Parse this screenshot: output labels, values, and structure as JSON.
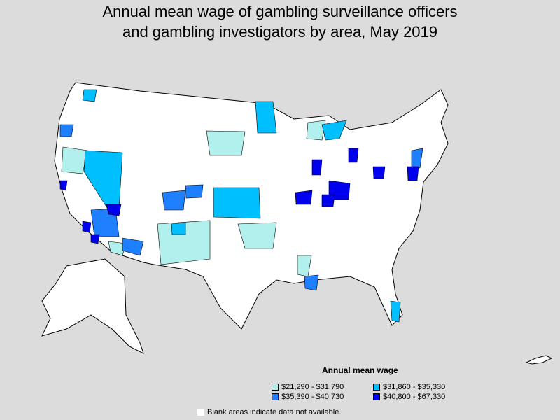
{
  "title_line1": "Annual mean wage of gambling surveillance officers",
  "title_line2": "and gambling investigators by area, May 2019",
  "legend": {
    "title": "Annual mean wage",
    "items": [
      {
        "label": "$21,290 - $31,790",
        "color": "#b2f0ee"
      },
      {
        "label": "$31,860 - $35,330",
        "color": "#00bfff"
      },
      {
        "label": "$35,390 - $40,730",
        "color": "#1e7fff"
      },
      {
        "label": "$40,800 - $67,330",
        "color": "#0000ee"
      }
    ]
  },
  "note": "Blank areas indicate data not available."
}
